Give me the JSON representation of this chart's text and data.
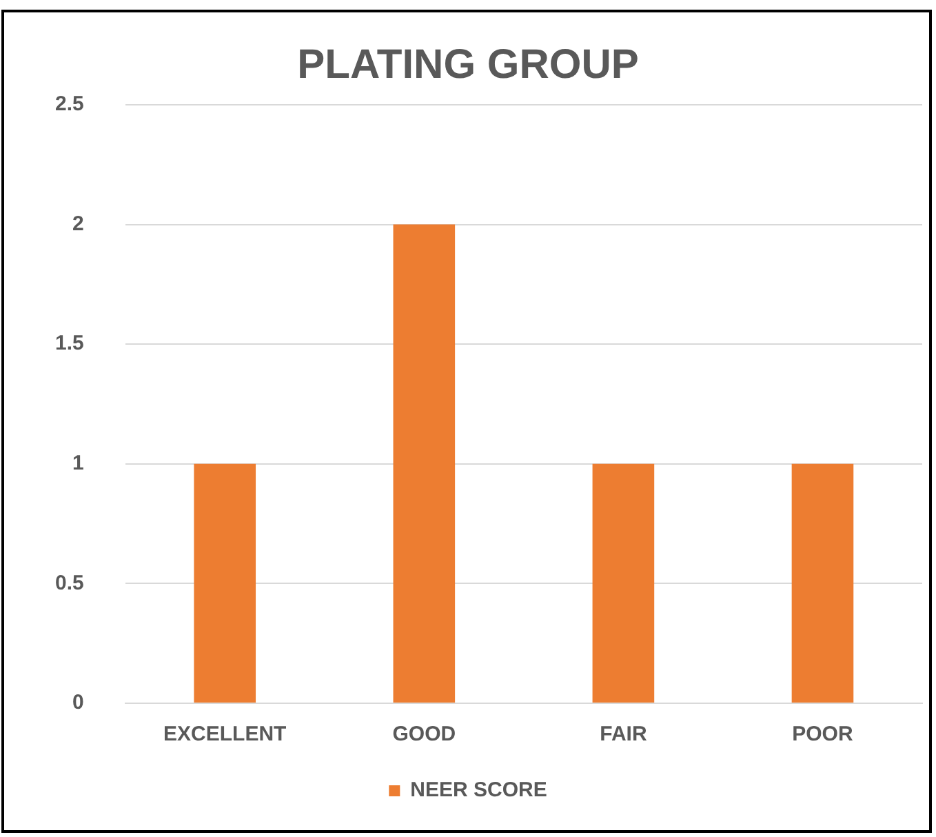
{
  "chart_data": {
    "type": "bar",
    "title": "PLATING GROUP",
    "categories": [
      "EXCELLENT",
      "GOOD",
      "FAIR",
      "POOR"
    ],
    "series": [
      {
        "name": "NEER SCORE",
        "color": "#ed7d31",
        "values": [
          1,
          2,
          1,
          1
        ]
      }
    ],
    "ylim": [
      0,
      2.5
    ],
    "yticks": [
      0,
      0.5,
      1,
      1.5,
      2,
      2.5
    ],
    "grid": "y",
    "legend": "bottom"
  }
}
